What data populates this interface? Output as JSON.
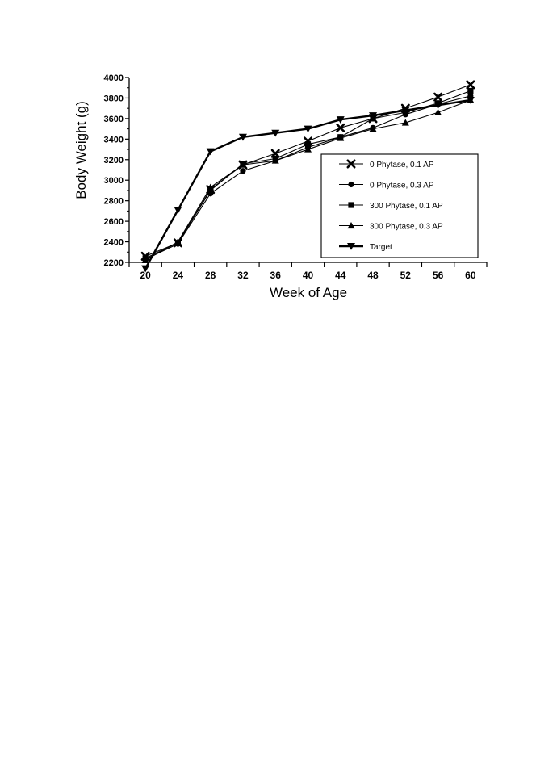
{
  "chart_data": {
    "type": "line",
    "title": "",
    "xlabel": "Week of Age",
    "ylabel": "Body Weight (g)",
    "x": [
      20,
      24,
      28,
      32,
      36,
      40,
      44,
      48,
      52,
      56,
      60
    ],
    "xlim": [
      18,
      62
    ],
    "ylim": [
      2200,
      4000
    ],
    "yticks": [
      2200,
      2400,
      2600,
      2800,
      3000,
      3200,
      3400,
      3600,
      3800,
      4000
    ],
    "grid": false,
    "legend_position": "lower-right",
    "series": [
      {
        "name": "0 Phytase, 0.1 AP",
        "marker": "x-mark",
        "values": [
          2260,
          2390,
          2910,
          3150,
          3260,
          3380,
          3510,
          3600,
          3700,
          3810,
          3930
        ]
      },
      {
        "name": "0 Phytase, 0.3 AP",
        "marker": "circle",
        "values": [
          2230,
          2380,
          2870,
          3090,
          3190,
          3320,
          3420,
          3510,
          3640,
          3740,
          3820
        ]
      },
      {
        "name": "300 Phytase, 0.1 AP",
        "marker": "square",
        "values": [
          2240,
          2390,
          2900,
          3160,
          3210,
          3350,
          3420,
          3600,
          3660,
          3750,
          3870
        ]
      },
      {
        "name": "300 Phytase, 0.3 AP",
        "marker": "triangle-up",
        "values": [
          2220,
          2400,
          2930,
          3150,
          3190,
          3300,
          3410,
          3500,
          3560,
          3660,
          3780
        ]
      },
      {
        "name": "Target",
        "marker": "triangle-down",
        "bold": true,
        "values": [
          2140,
          2710,
          3280,
          3420,
          3460,
          3500,
          3590,
          3630,
          3680,
          3730,
          3780
        ]
      }
    ]
  },
  "colors": {
    "ink": "#000000",
    "rule": "#555555"
  }
}
